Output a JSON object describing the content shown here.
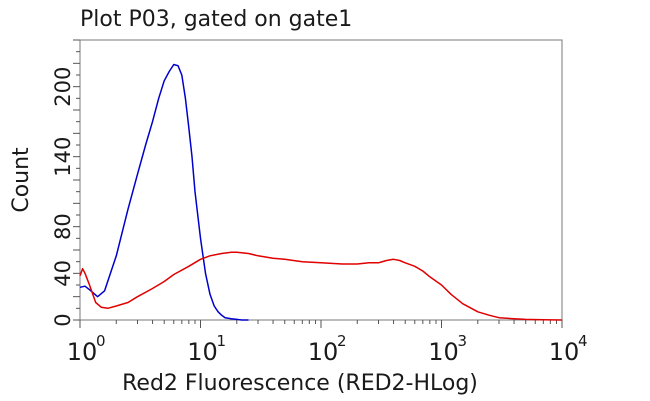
{
  "chart_data": {
    "type": "line",
    "title": "Plot P03, gated on gate1",
    "xlabel": "Red2 Fluorescence (RED2-HLog)",
    "ylabel": "Count",
    "x_scale": "log",
    "xlim": [
      1,
      10000
    ],
    "ylim": [
      0,
      240
    ],
    "x_ticks": [
      {
        "base": "10",
        "exp": "0"
      },
      {
        "base": "10",
        "exp": "1"
      },
      {
        "base": "10",
        "exp": "2"
      },
      {
        "base": "10",
        "exp": "3"
      },
      {
        "base": "10",
        "exp": "4"
      }
    ],
    "y_ticks": [
      "0",
      "40",
      "80",
      "140",
      "200"
    ],
    "grid": false,
    "legend": "none",
    "series": [
      {
        "color": "#0000cc",
        "x": [
          1.0,
          1.1,
          1.2,
          1.4,
          1.6,
          2.0,
          2.5,
          3.0,
          3.5,
          4.0,
          4.5,
          5.0,
          5.5,
          6.0,
          6.5,
          7.0,
          7.5,
          8.0,
          8.5,
          9.0,
          10.0,
          11.0,
          12.0,
          13.0,
          14.0,
          15.0,
          16.0,
          18.0,
          20.0,
          22.0,
          25.0
        ],
        "y": [
          28,
          29,
          26,
          20,
          25,
          55,
          95,
          125,
          150,
          170,
          190,
          205,
          213,
          219,
          218,
          210,
          190,
          165,
          140,
          110,
          70,
          40,
          22,
          12,
          7,
          4,
          2,
          1,
          0.5,
          0,
          0
        ]
      },
      {
        "color": "#e00000",
        "x": [
          1.0,
          1.05,
          1.1,
          1.2,
          1.35,
          1.5,
          1.7,
          2.0,
          2.5,
          3.0,
          4.0,
          5.0,
          6.0,
          8.0,
          10.0,
          12.0,
          15.0,
          18.0,
          20.0,
          25.0,
          30.0,
          40.0,
          50.0,
          70.0,
          100.0,
          150.0,
          200.0,
          250.0,
          300.0,
          350.0,
          400.0,
          450.0,
          500.0,
          600.0,
          700.0,
          800.0,
          1000.0,
          1200.0,
          1500.0,
          2000.0,
          2500.0,
          3000.0,
          4000.0,
          5000.0,
          7000.0,
          10000.0
        ],
        "y": [
          38,
          44,
          40,
          30,
          15,
          11,
          10,
          12,
          15,
          20,
          27,
          33,
          39,
          46,
          52,
          55,
          57,
          58,
          58,
          57,
          55,
          53,
          52,
          50,
          49,
          48,
          48,
          49,
          49,
          51,
          52,
          51,
          49,
          46,
          42,
          37,
          30,
          22,
          14,
          7,
          4,
          2,
          1,
          0.5,
          0.2,
          0
        ]
      }
    ]
  }
}
